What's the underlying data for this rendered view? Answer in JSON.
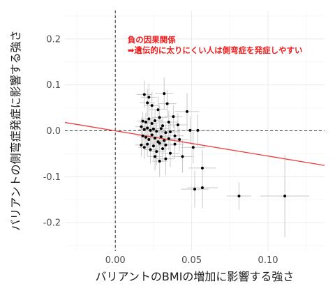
{
  "chart_data": {
    "type": "scatter",
    "xlabel": "バリアントのBMIの増加に影響する強さ",
    "ylabel": "バリアントの側弯症発症に影響する強さ",
    "xlim": [
      -0.033,
      0.137
    ],
    "ylim": [
      -0.262,
      0.262
    ],
    "x_ticks": [
      0.0,
      0.05,
      0.1
    ],
    "x_tick_labels": [
      "0.00",
      "0.05",
      "0.10"
    ],
    "y_ticks": [
      0.2,
      0.1,
      0.0,
      -0.1,
      -0.2
    ],
    "y_tick_labels": [
      "0.2",
      "0.1",
      "0.0",
      "-0.1",
      "-0.2"
    ],
    "grid": true,
    "reference_lines": {
      "x": 0,
      "y": 0,
      "style": "dashed"
    },
    "regression_line": {
      "slope": -0.55,
      "intercept": 0.0,
      "color": "#ee3b3b"
    },
    "annotation": {
      "line1": "負の因果関係",
      "line2": "➡遺伝的に太りにくい人は側弯症を発症しやすい",
      "x": 0.008,
      "y": 0.198,
      "color": "#ee1c1c"
    },
    "points": [
      {
        "x": 0.019,
        "y": 0.079,
        "xerr": 0.005,
        "yerr": 0.03
      },
      {
        "x": 0.022,
        "y": 0.073,
        "xerr": 0.005,
        "yerr": 0.03
      },
      {
        "x": 0.032,
        "y": 0.081,
        "xerr": 0.006,
        "yerr": 0.035
      },
      {
        "x": 0.021,
        "y": 0.061,
        "xerr": 0.005,
        "yerr": 0.03
      },
      {
        "x": 0.024,
        "y": 0.055,
        "xerr": 0.005,
        "yerr": 0.03
      },
      {
        "x": 0.034,
        "y": 0.059,
        "xerr": 0.006,
        "yerr": 0.03
      },
      {
        "x": 0.028,
        "y": 0.046,
        "xerr": 0.006,
        "yerr": 0.03
      },
      {
        "x": 0.047,
        "y": 0.042,
        "xerr": 0.008,
        "yerr": 0.04
      },
      {
        "x": 0.018,
        "y": 0.021,
        "xerr": 0.004,
        "yerr": 0.02
      },
      {
        "x": 0.02,
        "y": 0.019,
        "xerr": 0.004,
        "yerr": 0.02
      },
      {
        "x": 0.022,
        "y": 0.026,
        "xerr": 0.004,
        "yerr": 0.02
      },
      {
        "x": 0.024,
        "y": 0.016,
        "xerr": 0.004,
        "yerr": 0.025
      },
      {
        "x": 0.026,
        "y": 0.022,
        "xerr": 0.005,
        "yerr": 0.025
      },
      {
        "x": 0.029,
        "y": 0.029,
        "xerr": 0.005,
        "yerr": 0.025
      },
      {
        "x": 0.031,
        "y": 0.011,
        "xerr": 0.005,
        "yerr": 0.02
      },
      {
        "x": 0.035,
        "y": 0.019,
        "xerr": 0.006,
        "yerr": 0.025
      },
      {
        "x": 0.038,
        "y": 0.031,
        "xerr": 0.006,
        "yerr": 0.025
      },
      {
        "x": 0.041,
        "y": 0.013,
        "xerr": 0.006,
        "yerr": 0.025
      },
      {
        "x": 0.017,
        "y": 0.009,
        "xerr": 0.004,
        "yerr": 0.02
      },
      {
        "x": 0.019,
        "y": 0.003,
        "xerr": 0.004,
        "yerr": 0.02
      },
      {
        "x": 0.021,
        "y": 0.006,
        "xerr": 0.004,
        "yerr": 0.02
      },
      {
        "x": 0.023,
        "y": 0.001,
        "xerr": 0.004,
        "yerr": 0.02
      },
      {
        "x": 0.025,
        "y": 0.004,
        "xerr": 0.005,
        "yerr": 0.02
      },
      {
        "x": 0.027,
        "y": -0.001,
        "xerr": 0.005,
        "yerr": 0.02
      },
      {
        "x": 0.03,
        "y": 0.005,
        "xerr": 0.005,
        "yerr": 0.02
      },
      {
        "x": 0.033,
        "y": -0.004,
        "xerr": 0.005,
        "yerr": 0.02
      },
      {
        "x": 0.036,
        "y": -0.002,
        "xerr": 0.006,
        "yerr": 0.02
      },
      {
        "x": 0.049,
        "y": 0.001,
        "xerr": 0.008,
        "yerr": 0.03
      },
      {
        "x": 0.054,
        "y": 0.001,
        "xerr": 0.01,
        "yerr": 0.035
      },
      {
        "x": 0.018,
        "y": -0.011,
        "xerr": 0.004,
        "yerr": 0.02
      },
      {
        "x": 0.02,
        "y": -0.014,
        "xerr": 0.004,
        "yerr": 0.02
      },
      {
        "x": 0.022,
        "y": -0.019,
        "xerr": 0.004,
        "yerr": 0.02
      },
      {
        "x": 0.024,
        "y": -0.009,
        "xerr": 0.004,
        "yerr": 0.02
      },
      {
        "x": 0.026,
        "y": -0.016,
        "xerr": 0.005,
        "yerr": 0.02
      },
      {
        "x": 0.028,
        "y": -0.024,
        "xerr": 0.005,
        "yerr": 0.025
      },
      {
        "x": 0.03,
        "y": -0.013,
        "xerr": 0.005,
        "yerr": 0.02
      },
      {
        "x": 0.032,
        "y": -0.021,
        "xerr": 0.005,
        "yerr": 0.025
      },
      {
        "x": 0.035,
        "y": -0.017,
        "xerr": 0.006,
        "yerr": 0.025
      },
      {
        "x": 0.039,
        "y": -0.011,
        "xerr": 0.006,
        "yerr": 0.025
      },
      {
        "x": 0.042,
        "y": -0.019,
        "xerr": 0.006,
        "yerr": 0.025
      },
      {
        "x": 0.017,
        "y": -0.031,
        "xerr": 0.004,
        "yerr": 0.025
      },
      {
        "x": 0.019,
        "y": -0.036,
        "xerr": 0.004,
        "yerr": 0.025
      },
      {
        "x": 0.021,
        "y": -0.029,
        "xerr": 0.004,
        "yerr": 0.025
      },
      {
        "x": 0.023,
        "y": -0.041,
        "xerr": 0.004,
        "yerr": 0.03
      },
      {
        "x": 0.025,
        "y": -0.033,
        "xerr": 0.005,
        "yerr": 0.03
      },
      {
        "x": 0.027,
        "y": -0.045,
        "xerr": 0.005,
        "yerr": 0.03
      },
      {
        "x": 0.029,
        "y": -0.027,
        "xerr": 0.005,
        "yerr": 0.025
      },
      {
        "x": 0.031,
        "y": -0.039,
        "xerr": 0.005,
        "yerr": 0.03
      },
      {
        "x": 0.033,
        "y": -0.031,
        "xerr": 0.005,
        "yerr": 0.03
      },
      {
        "x": 0.036,
        "y": -0.049,
        "xerr": 0.006,
        "yerr": 0.03
      },
      {
        "x": 0.039,
        "y": -0.029,
        "xerr": 0.006,
        "yerr": 0.03
      },
      {
        "x": 0.026,
        "y": -0.056,
        "xerr": 0.005,
        "yerr": 0.03
      },
      {
        "x": 0.029,
        "y": -0.066,
        "xerr": 0.005,
        "yerr": 0.035
      },
      {
        "x": 0.033,
        "y": -0.061,
        "xerr": 0.006,
        "yerr": 0.035
      },
      {
        "x": 0.044,
        "y": -0.056,
        "xerr": 0.007,
        "yerr": 0.035
      },
      {
        "x": 0.051,
        "y": -0.036,
        "xerr": 0.008,
        "yerr": 0.035
      },
      {
        "x": 0.057,
        "y": -0.081,
        "xerr": 0.009,
        "yerr": 0.04
      },
      {
        "x": 0.052,
        "y": -0.127,
        "xerr": 0.009,
        "yerr": 0.04
      },
      {
        "x": 0.057,
        "y": -0.124,
        "xerr": 0.01,
        "yerr": 0.045
      },
      {
        "x": 0.081,
        "y": -0.142,
        "xerr": 0.008,
        "yerr": 0.03
      },
      {
        "x": 0.111,
        "y": -0.142,
        "xerr": 0.016,
        "yerr": 0.09
      }
    ]
  }
}
